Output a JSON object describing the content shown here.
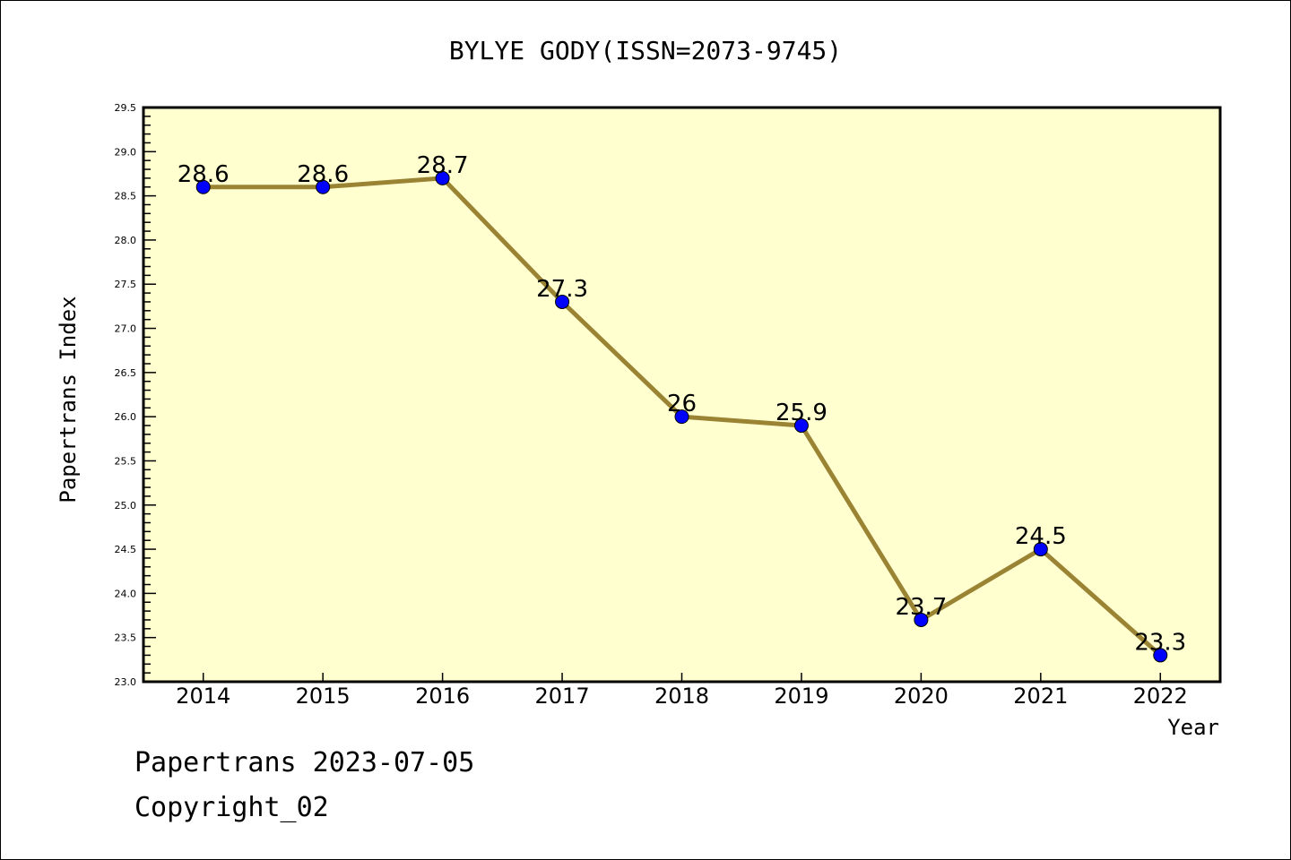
{
  "chart_data": {
    "type": "line",
    "title": "BYLYE GODY(ISSN=2073-9745)",
    "xlabel": "Year",
    "ylabel": "Papertrans Index",
    "x": [
      "2014",
      "2015",
      "2016",
      "2017",
      "2018",
      "2019",
      "2020",
      "2021",
      "2022"
    ],
    "series": [
      {
        "name": "Papertrans Index",
        "values": [
          28.6,
          28.6,
          28.7,
          27.3,
          26.0,
          25.9,
          23.7,
          24.5,
          23.3
        ]
      }
    ],
    "data_labels": [
      "28.6",
      "28.6",
      "28.7",
      "27.3",
      "26",
      "25.9",
      "23.7",
      "24.5",
      "23.3"
    ],
    "ylim": [
      23.0,
      29.5
    ],
    "yticks": [
      "23.0",
      "23.5",
      "24.0",
      "24.5",
      "25.0",
      "25.5",
      "26.0",
      "26.5",
      "27.0",
      "27.5",
      "28.0",
      "28.5",
      "29.0",
      "29.5"
    ],
    "grid": false,
    "colors": {
      "background": "#ffffd0",
      "line": "#9a8434",
      "marker": "#0000ff"
    }
  },
  "footer": {
    "line1": "Papertrans 2023-07-05",
    "line2": "Copyright_02"
  }
}
